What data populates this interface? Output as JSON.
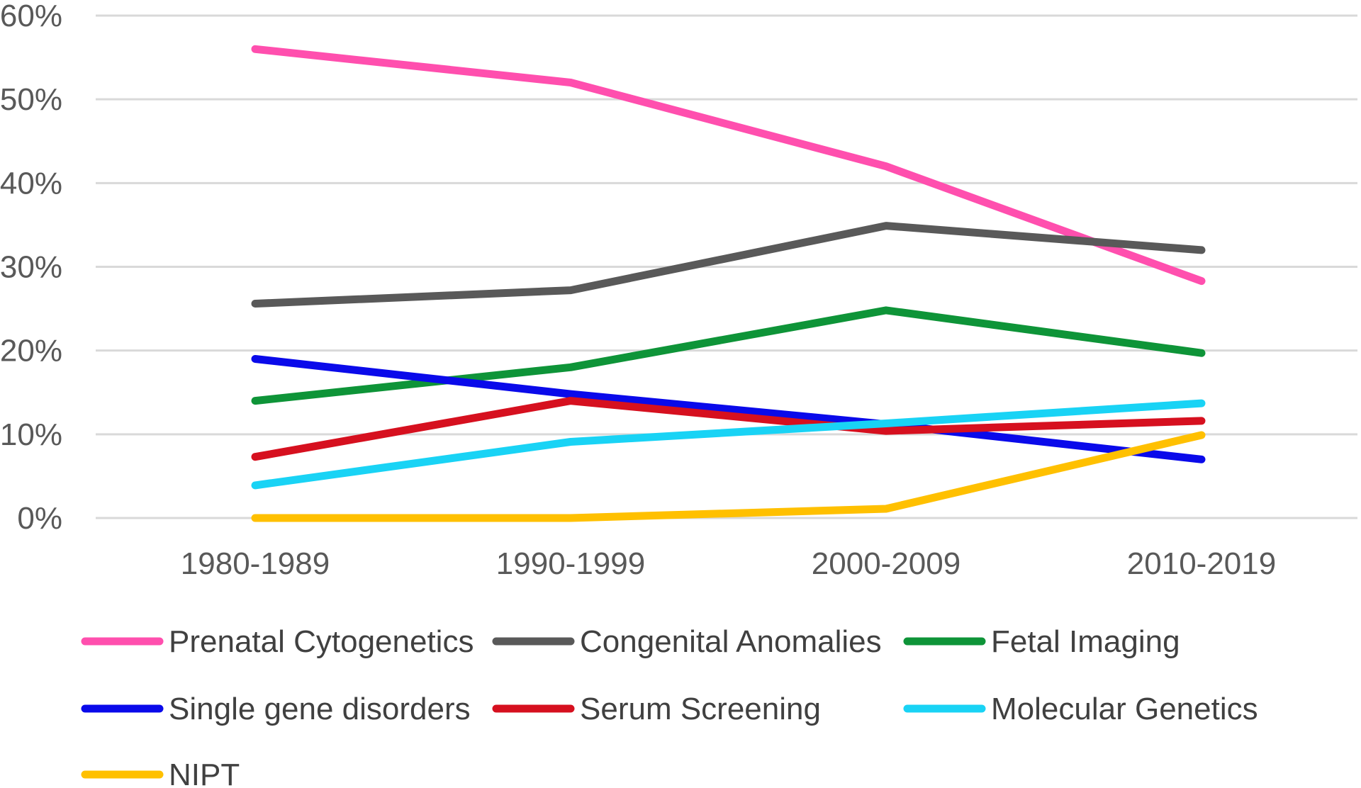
{
  "chart_data": {
    "type": "line",
    "title": "",
    "xlabel": "",
    "ylabel": "",
    "categories": [
      "1980-1989",
      "1990-1999",
      "2000-2009",
      "2010-2019"
    ],
    "ylim": [
      0,
      60
    ],
    "yticks": [
      0,
      10,
      20,
      30,
      40,
      50,
      60
    ],
    "ytick_labels": [
      "0%",
      "10%",
      "20%",
      "30%",
      "40%",
      "50%",
      "60%"
    ],
    "grid": true,
    "legend_position": "bottom",
    "series": [
      {
        "name": "Prenatal Cytogenetics",
        "color": "#ff4fae",
        "values": [
          56,
          52,
          42,
          28.3
        ]
      },
      {
        "name": "Congenital Anomalies",
        "color": "#595959",
        "values": [
          25.6,
          27.2,
          34.9,
          32
        ]
      },
      {
        "name": "Fetal Imaging",
        "color": "#0e9438",
        "values": [
          14,
          18,
          24.8,
          19.7
        ]
      },
      {
        "name": "Single gene disorders",
        "color": "#0a0aea",
        "values": [
          19,
          14.8,
          11.2,
          7
        ]
      },
      {
        "name": "Serum Screening",
        "color": "#d6101f",
        "values": [
          7.3,
          14,
          10.4,
          11.6
        ]
      },
      {
        "name": "Molecular Genetics",
        "color": "#19d3f5",
        "values": [
          3.9,
          9.1,
          11.3,
          13.7
        ]
      },
      {
        "name": "NIPT",
        "color": "#ffc000",
        "values": [
          0,
          0,
          1.1,
          9.9
        ]
      }
    ]
  }
}
